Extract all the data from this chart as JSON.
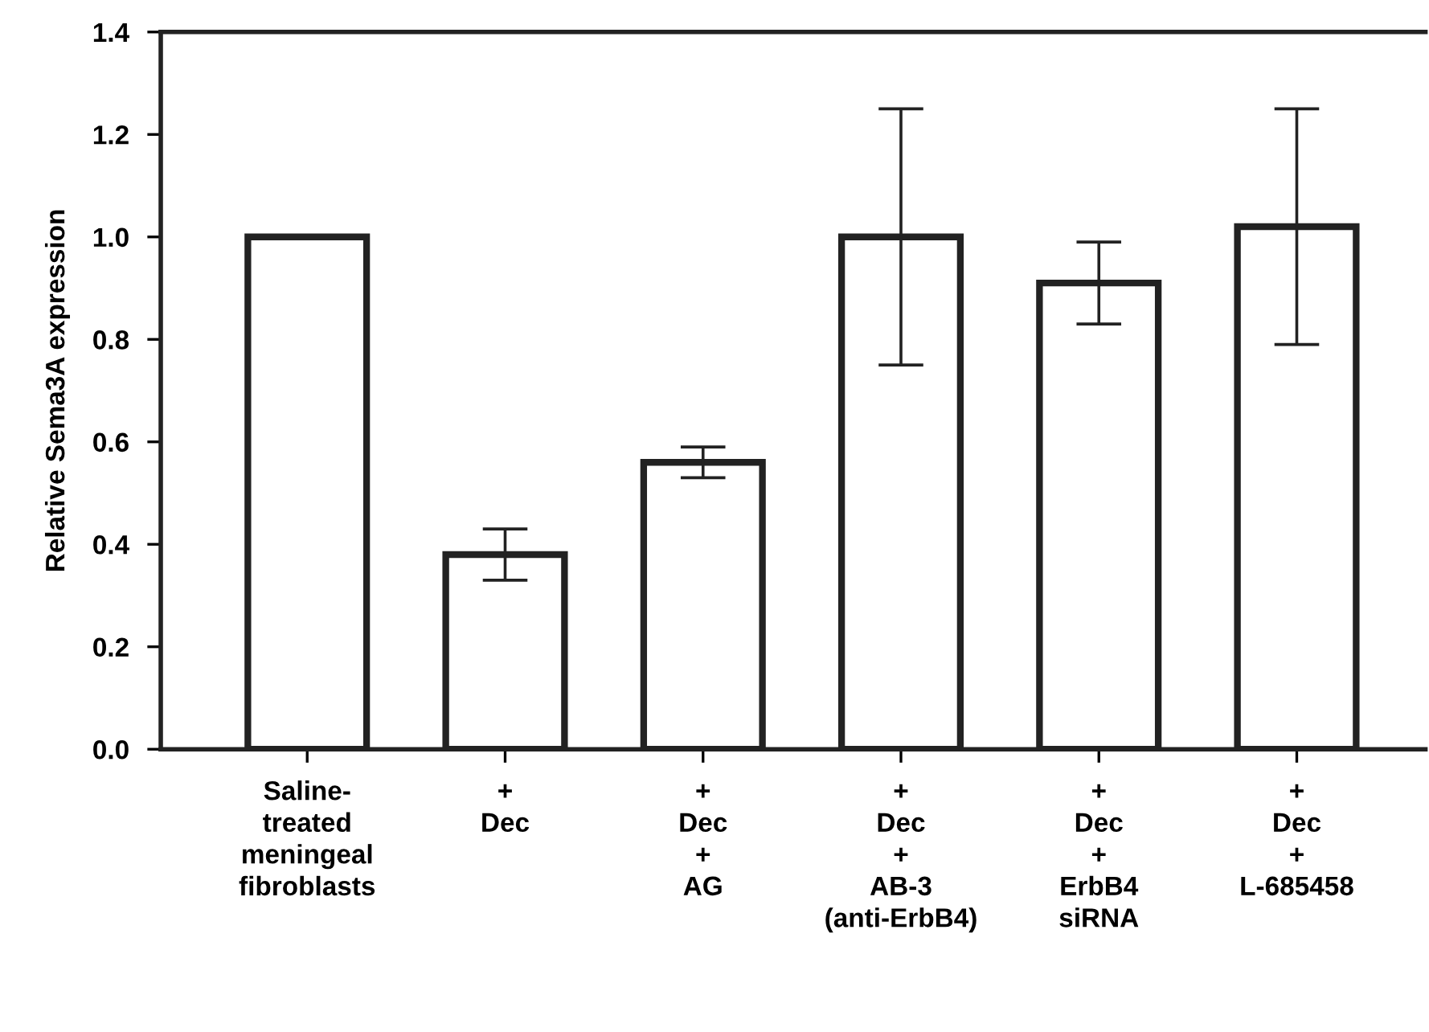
{
  "chart_data": {
    "type": "bar",
    "categories": [
      "Saline-\ntreated\nmeningeal\nfibroblasts",
      "+\nDec",
      "+\nDec\n+\nAG",
      "+\nDec\n+\nAB-3\n(anti-ErbB4)",
      "+\nDec\n+\nErbB4\nsiRNA",
      "+\nDec\n+\nL-685458"
    ],
    "values": [
      1.0,
      0.38,
      0.56,
      1.0,
      0.91,
      1.02
    ],
    "errors": [
      null,
      0.05,
      0.03,
      0.25,
      0.08,
      0.23
    ],
    "color": "#ffffff",
    "ylabel": "Relative Sema3A expression",
    "ylim": [
      0,
      1.4
    ],
    "yticks": [
      {
        "value": 0,
        "label": "0.0"
      },
      0.2,
      0.4,
      0.6,
      0.8,
      {
        "value": 1,
        "label": "1.0"
      },
      1.2,
      1.4
    ],
    "grid": false,
    "legend": false
  }
}
